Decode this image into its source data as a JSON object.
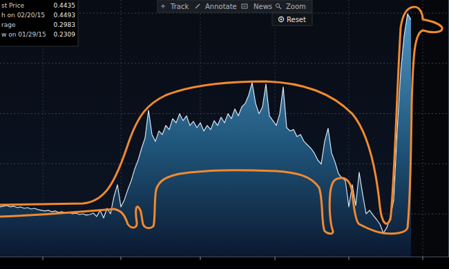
{
  "toolbar": {
    "items": [
      "Track",
      "Annotate",
      "News",
      "Zoom"
    ],
    "reset": "Reset"
  },
  "stats": [
    {
      "label": "st Price",
      "value": 0.4435
    },
    {
      "label": "h on 02/20/15",
      "value": 0.4493
    },
    {
      "label": "rage",
      "value": 0.2983
    },
    {
      "label": "w on 01/29/15",
      "value": 0.2309
    }
  ],
  "chart_data": {
    "type": "area",
    "color": "#d6e6f4",
    "categories": [
      null,
      null,
      null,
      null,
      null,
      null,
      null,
      null,
      null,
      null,
      null,
      null,
      null,
      null,
      null,
      null,
      null,
      null,
      null,
      null,
      null,
      null,
      null,
      null,
      null,
      null,
      null,
      null,
      null,
      null,
      null,
      null,
      null,
      null,
      null,
      null,
      null,
      null,
      null,
      null,
      null,
      null,
      null,
      null,
      null,
      null,
      null,
      null,
      null,
      null,
      null,
      null,
      null,
      null,
      null,
      null,
      null,
      null,
      null,
      null,
      null,
      null,
      null,
      null,
      null,
      null,
      null,
      null,
      null,
      null,
      null,
      null,
      null,
      null,
      null,
      null,
      null,
      null,
      null,
      null,
      null,
      null,
      null,
      null,
      null,
      null,
      null,
      null,
      null,
      null,
      null,
      null,
      null,
      null,
      null,
      null,
      null,
      null,
      null,
      null,
      null,
      null,
      null,
      null,
      null,
      null,
      null,
      null,
      null,
      null,
      null,
      null,
      null,
      null,
      null,
      null,
      null,
      null,
      null,
      null
    ],
    "values": [
      0.257,
      0.2577,
      0.2584,
      0.257,
      0.2577,
      0.2563,
      0.257,
      0.2556,
      0.2563,
      0.2549,
      0.2556,
      0.2543,
      0.2536,
      0.2529,
      0.2536,
      0.2522,
      0.2529,
      0.2515,
      0.2522,
      0.2508,
      0.2515,
      0.2501,
      0.2508,
      0.2494,
      0.2501,
      0.2488,
      0.2494,
      0.2508,
      0.2474,
      0.2536,
      0.246,
      0.2556,
      0.2501,
      0.2673,
      0.279,
      0.257,
      0.2639,
      0.2742,
      0.2831,
      0.2948,
      0.3037,
      0.3154,
      0.3257,
      0.3532,
      0.3291,
      0.3223,
      0.3326,
      0.3291,
      0.3381,
      0.334,
      0.3449,
      0.3408,
      0.3498,
      0.3429,
      0.3477,
      0.3381,
      0.3422,
      0.336,
      0.3408,
      0.3326,
      0.3381,
      0.334,
      0.3429,
      0.3381,
      0.3463,
      0.3408,
      0.3498,
      0.3449,
      0.3546,
      0.3477,
      0.3566,
      0.3601,
      0.3683,
      0.3807,
      0.3601,
      0.3498,
      0.3566,
      0.3793,
      0.3477,
      0.3429,
      0.3381,
      0.3498,
      0.3765,
      0.336,
      0.3326,
      0.334,
      0.3271,
      0.3291,
      0.3223,
      0.3188,
      0.3154,
      0.3106,
      0.3037,
      0.2996,
      0.3223,
      0.3353,
      0.3106,
      0.3017,
      0.29,
      0.2859,
      0.2831,
      0.257,
      0.279,
      0.2584,
      0.2914,
      0.2694,
      0.2501,
      0.2536,
      0.2488,
      0.2446,
      0.2398,
      0.2309,
      0.2364,
      0.2467,
      0.2639,
      0.3326,
      0.391,
      0.4274,
      0.4493,
      0.4435
    ],
    "ylim": [
      0.2075,
      0.4631
    ],
    "yticks": [
      0.25,
      0.3,
      0.35,
      0.4,
      0.45
    ],
    "grid": true,
    "tick_labels": false
  }
}
